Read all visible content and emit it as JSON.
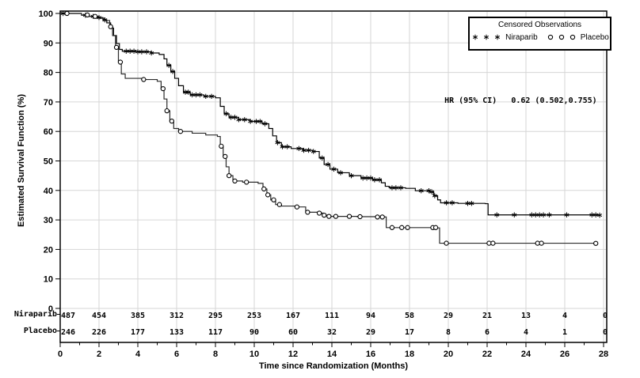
{
  "chart_data": {
    "type": "line",
    "subtype": "kaplan-meier-step",
    "title": "",
    "xlabel": "Time since Randomization (Months)",
    "ylabel": "Estimated Survival Function (%)",
    "xlim": [
      0,
      28
    ],
    "ylim": [
      0,
      100
    ],
    "xtick_step": 2,
    "ytick_step": 10,
    "grid": true,
    "annotation": {
      "label": "HR (95% CI)",
      "value": "0.62 (0.502,0.755)"
    },
    "legend": {
      "title": "Censored Observations",
      "position": "top-right",
      "entries": [
        {
          "name": "Niraparib",
          "marker": "asterisk"
        },
        {
          "name": "Placebo",
          "marker": "circle"
        }
      ]
    },
    "series": [
      {
        "name": "Niraparib",
        "marker": "asterisk",
        "color": "#000000",
        "steps": [
          [
            0,
            100
          ],
          [
            1.1,
            99.4
          ],
          [
            1.5,
            99
          ],
          [
            1.9,
            98.6
          ],
          [
            2.2,
            97.8
          ],
          [
            2.4,
            96.8
          ],
          [
            2.6,
            95
          ],
          [
            2.75,
            92.5
          ],
          [
            2.9,
            89.8
          ],
          [
            3.05,
            87.8
          ],
          [
            3.2,
            87.2
          ],
          [
            4.0,
            87
          ],
          [
            4.7,
            86.6
          ],
          [
            5.1,
            86.1
          ],
          [
            5.35,
            84.6
          ],
          [
            5.5,
            82.4
          ],
          [
            5.7,
            80.3
          ],
          [
            5.9,
            78
          ],
          [
            6.1,
            75.5
          ],
          [
            6.35,
            73.3
          ],
          [
            6.7,
            72.4
          ],
          [
            7.4,
            71.9
          ],
          [
            8.0,
            71.4
          ],
          [
            8.25,
            68.5
          ],
          [
            8.45,
            66
          ],
          [
            8.7,
            64.8
          ],
          [
            9.2,
            64
          ],
          [
            9.8,
            63.4
          ],
          [
            10.4,
            62.6
          ],
          [
            10.75,
            61
          ],
          [
            10.95,
            58.5
          ],
          [
            11.15,
            56.2
          ],
          [
            11.4,
            54.8
          ],
          [
            11.9,
            54.2
          ],
          [
            12.5,
            53.6
          ],
          [
            13.0,
            53.2
          ],
          [
            13.35,
            51
          ],
          [
            13.6,
            48.8
          ],
          [
            13.9,
            47.2
          ],
          [
            14.3,
            46
          ],
          [
            14.9,
            45
          ],
          [
            15.5,
            44.2
          ],
          [
            16.1,
            43.6
          ],
          [
            16.55,
            42.6
          ],
          [
            16.75,
            41.4
          ],
          [
            16.95,
            40.9
          ],
          [
            17.8,
            40.7
          ],
          [
            18.3,
            39.9
          ],
          [
            19.05,
            39.5
          ],
          [
            19.25,
            38.2
          ],
          [
            19.45,
            36.8
          ],
          [
            19.6,
            35.8
          ],
          [
            20.5,
            35.6
          ],
          [
            21.9,
            35.5
          ],
          [
            22.05,
            31.7
          ],
          [
            27.8,
            31.6
          ]
        ],
        "censor_times": [
          0.15,
          1.3,
          1.7,
          2.0,
          2.3,
          3.4,
          3.6,
          3.8,
          4.0,
          4.2,
          4.45,
          4.7,
          5.6,
          5.8,
          6.45,
          6.6,
          6.8,
          7.0,
          7.2,
          7.5,
          7.8,
          8.55,
          8.8,
          9.0,
          9.2,
          9.5,
          9.8,
          10.1,
          10.3,
          10.55,
          11.2,
          11.45,
          11.7,
          12.3,
          12.55,
          12.8,
          13.05,
          13.5,
          13.8,
          14.1,
          14.45,
          15.0,
          15.6,
          15.8,
          16.0,
          16.2,
          16.45,
          17.1,
          17.3,
          17.55,
          18.6,
          19.0,
          19.15,
          19.3,
          19.9,
          20.2,
          21.0,
          21.2,
          22.5,
          23.4,
          24.3,
          24.5,
          24.7,
          24.9,
          25.2,
          26.1,
          27.4,
          27.6,
          27.8
        ]
      },
      {
        "name": "Placebo",
        "marker": "circle",
        "color": "#2b2b2b",
        "steps": [
          [
            0,
            100
          ],
          [
            1.1,
            99.5
          ],
          [
            1.5,
            99
          ],
          [
            2.0,
            98.4
          ],
          [
            2.3,
            97.6
          ],
          [
            2.55,
            95.5
          ],
          [
            2.7,
            92.5
          ],
          [
            2.85,
            88.5
          ],
          [
            3.0,
            83.5
          ],
          [
            3.15,
            79.5
          ],
          [
            3.35,
            78
          ],
          [
            4.2,
            77.6
          ],
          [
            5.0,
            77
          ],
          [
            5.2,
            74.5
          ],
          [
            5.35,
            71
          ],
          [
            5.5,
            67
          ],
          [
            5.65,
            63.5
          ],
          [
            5.85,
            61
          ],
          [
            6.1,
            60
          ],
          [
            6.8,
            59.4
          ],
          [
            7.5,
            58.8
          ],
          [
            8.1,
            58.3
          ],
          [
            8.25,
            55
          ],
          [
            8.4,
            51.5
          ],
          [
            8.55,
            48
          ],
          [
            8.7,
            45
          ],
          [
            8.9,
            43.2
          ],
          [
            9.4,
            42.8
          ],
          [
            10.2,
            42.4
          ],
          [
            10.45,
            40.5
          ],
          [
            10.65,
            38.5
          ],
          [
            10.85,
            36.8
          ],
          [
            11.1,
            35.2
          ],
          [
            11.4,
            34.7
          ],
          [
            12.1,
            34.4
          ],
          [
            12.65,
            32.6
          ],
          [
            13.3,
            32.3
          ],
          [
            13.55,
            31.6
          ],
          [
            13.8,
            31.2
          ],
          [
            15.3,
            31.1
          ],
          [
            16.3,
            31.0
          ],
          [
            16.8,
            27.4
          ],
          [
            19.45,
            27.3
          ],
          [
            19.55,
            22.1
          ],
          [
            27.6,
            22.05
          ]
        ],
        "censor_times": [
          0.35,
          1.4,
          1.8,
          2.6,
          2.9,
          3.1,
          4.3,
          5.3,
          5.5,
          5.75,
          6.2,
          8.3,
          8.5,
          8.7,
          9.0,
          9.6,
          10.5,
          10.7,
          11.0,
          11.3,
          12.2,
          12.75,
          13.35,
          13.6,
          13.85,
          14.2,
          14.9,
          15.45,
          16.35,
          16.6,
          17.1,
          17.6,
          17.9,
          19.2,
          19.35,
          19.9,
          22.1,
          22.3,
          24.6,
          24.8,
          27.6
        ]
      }
    ],
    "risk_table": {
      "times": [
        0,
        2,
        4,
        6,
        8,
        10,
        12,
        14,
        16,
        18,
        20,
        22,
        24,
        26,
        28
      ],
      "rows": [
        {
          "label": "Niraparib",
          "counts": [
            487,
            454,
            385,
            312,
            295,
            253,
            167,
            111,
            94,
            58,
            29,
            21,
            13,
            4,
            0
          ]
        },
        {
          "label": "Placebo",
          "counts": [
            246,
            226,
            177,
            133,
            117,
            90,
            60,
            32,
            29,
            17,
            8,
            6,
            4,
            1,
            0
          ]
        }
      ]
    }
  }
}
